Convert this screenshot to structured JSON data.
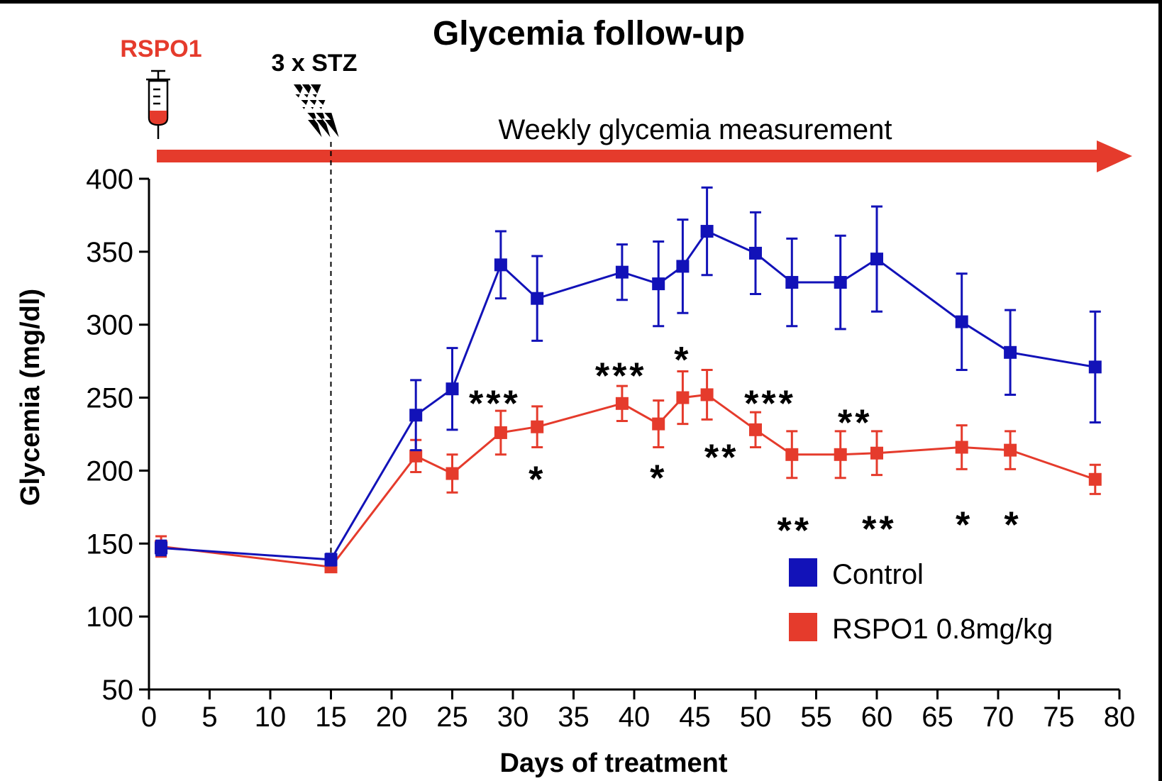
{
  "chart_data": {
    "type": "line",
    "title": "Glycemia follow-up",
    "xlabel": "Days of treatment",
    "ylabel": "Glycemia (mg/dl)",
    "xlim": [
      0,
      80
    ],
    "ylim": [
      50,
      400
    ],
    "xticks": [
      0,
      5,
      10,
      15,
      20,
      25,
      30,
      35,
      40,
      45,
      50,
      55,
      60,
      65,
      70,
      75,
      80
    ],
    "yticks": [
      50,
      100,
      150,
      200,
      250,
      300,
      350,
      400
    ],
    "legend_position": "bottom-right",
    "series": [
      {
        "name": "Control",
        "color": "#1212b8",
        "x": [
          1,
          15,
          22,
          25,
          29,
          32,
          39,
          42,
          44,
          46,
          50,
          53,
          57,
          60,
          67,
          71,
          78
        ],
        "y": [
          147,
          139,
          238,
          256,
          341,
          318,
          336,
          328,
          340,
          364,
          349,
          329,
          329,
          345,
          302,
          281,
          271
        ],
        "err": [
          5,
          4,
          24,
          28,
          23,
          29,
          19,
          29,
          32,
          30,
          28,
          30,
          32,
          36,
          33,
          29,
          38
        ]
      },
      {
        "name": "RSPO1 0.8mg/kg",
        "color": "#e53b2c",
        "x": [
          1,
          15,
          22,
          25,
          29,
          32,
          39,
          42,
          44,
          46,
          50,
          53,
          57,
          60,
          67,
          71,
          78
        ],
        "y": [
          148,
          134,
          210,
          198,
          226,
          230,
          246,
          232,
          250,
          252,
          228,
          211,
          211,
          212,
          216,
          214,
          194
        ],
        "err": [
          7,
          3,
          11,
          13,
          15,
          14,
          12,
          16,
          18,
          17,
          12,
          16,
          16,
          15,
          15,
          13,
          10
        ]
      }
    ],
    "significance": [
      {
        "x": 28.5,
        "y": 251,
        "label": "***"
      },
      {
        "x": 32,
        "y": 199,
        "label": "*"
      },
      {
        "x": 38.9,
        "y": 270,
        "label": "***"
      },
      {
        "x": 42,
        "y": 200,
        "label": "*"
      },
      {
        "x": 44,
        "y": 281,
        "label": "*"
      },
      {
        "x": 47.2,
        "y": 214,
        "label": "**"
      },
      {
        "x": 51.2,
        "y": 251,
        "label": "***"
      },
      {
        "x": 53.2,
        "y": 164,
        "label": "**"
      },
      {
        "x": 58.2,
        "y": 238,
        "label": "**"
      },
      {
        "x": 60.2,
        "y": 165,
        "label": "**"
      },
      {
        "x": 67.2,
        "y": 168,
        "label": "*"
      },
      {
        "x": 71.2,
        "y": 168,
        "label": "*"
      }
    ],
    "annotations": {
      "treatment_label": "RSPO1",
      "stz_label": "3 x STZ",
      "arrow_label": "Weekly glycemia measurement",
      "stz_day": 15
    }
  }
}
